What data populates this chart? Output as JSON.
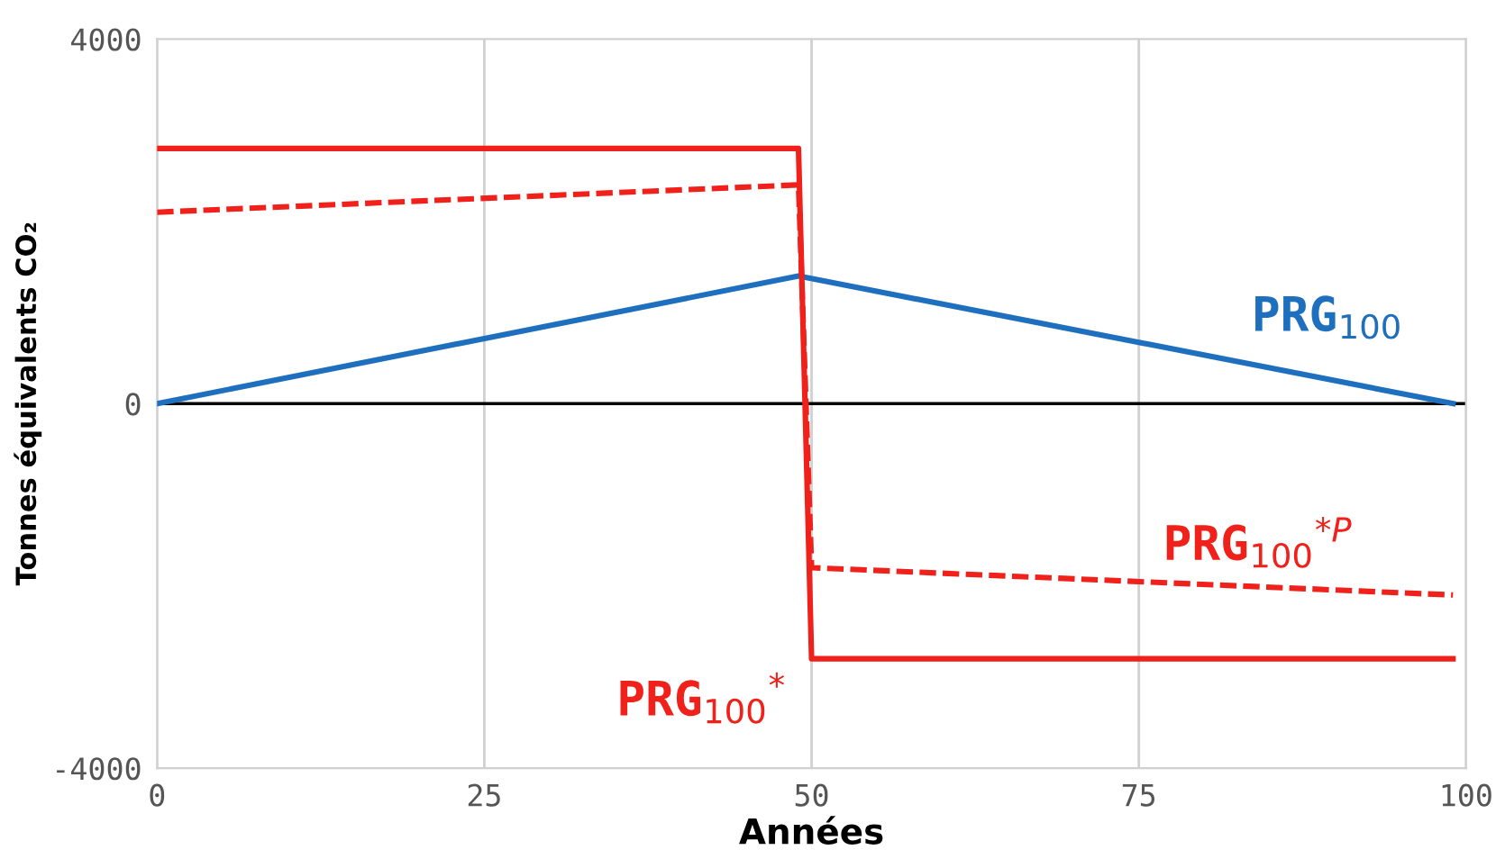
{
  "chart_data": {
    "type": "line",
    "xlabel": "Années",
    "ylabel": "Tonnes équivalents CO₂",
    "xlim": [
      0,
      100
    ],
    "xticks": [
      0,
      25,
      50,
      75,
      100
    ],
    "ylim": [
      -4000,
      4000
    ],
    "yticks": [
      -4000,
      0,
      4000
    ],
    "grid": "x",
    "legend": false,
    "marker": "none",
    "ref_lines": [
      {
        "axis": "y",
        "value": 0,
        "color": "#000000"
      }
    ],
    "series": [
      {
        "name": "PRG$_{100}$",
        "color": "#1f6fbf",
        "line_style": "solid",
        "x": [
          0,
          49,
          99
        ],
        "values": [
          0,
          1400,
          0
        ]
      },
      {
        "name": "PRG$_{100}$$^{*P}$",
        "color": "#f0201a",
        "line_style": "dashed",
        "x": [
          0,
          49,
          50,
          99
        ],
        "values": [
          2100,
          2400,
          -1800,
          -2100
        ]
      },
      {
        "name": "PRG$_{100}$$^{*}$",
        "color": "#f0201a",
        "line_style": "solid",
        "x": [
          0,
          49,
          50,
          99
        ],
        "values": [
          2800,
          2800,
          -2800,
          -2800
        ]
      }
    ]
  }
}
